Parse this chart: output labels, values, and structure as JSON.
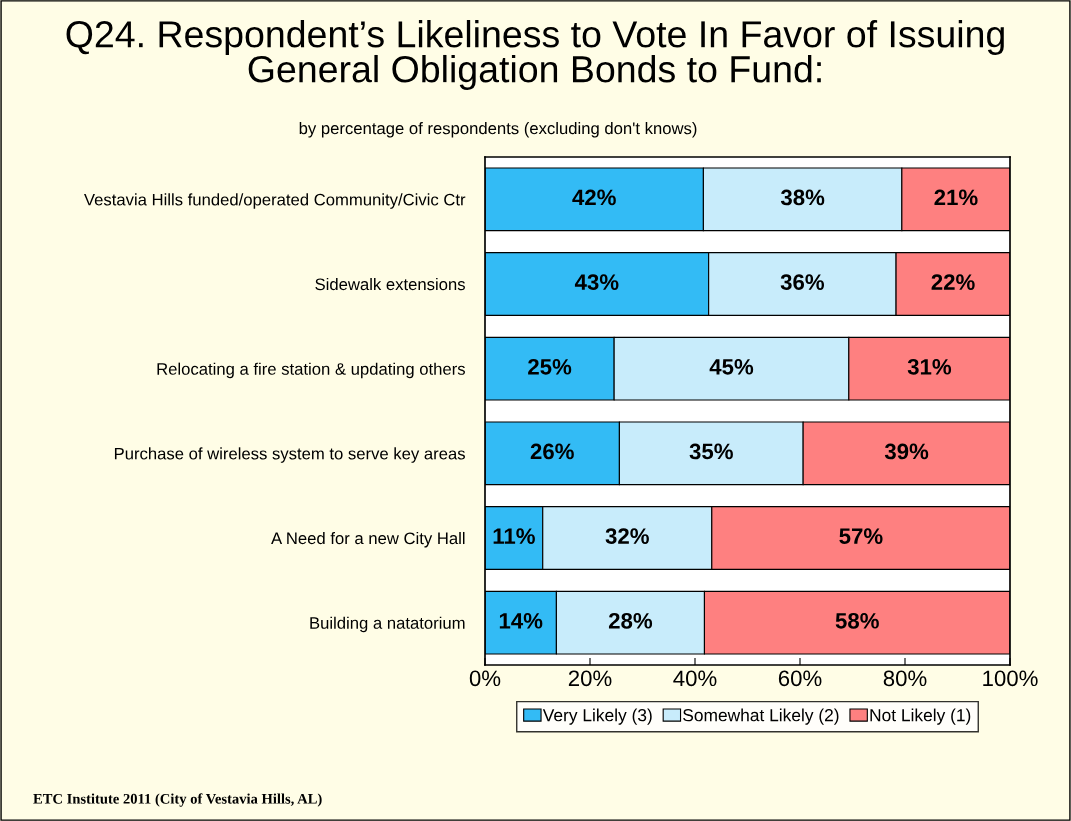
{
  "chart_data": {
    "type": "bar",
    "orientation": "horizontal",
    "stacked": true,
    "title": "Q24. Respondent’s Likeliness to Vote In Favor of Issuing\nGeneral Obligation Bonds to Fund:",
    "subtitle": "by percentage of respondents (excluding don't knows)",
    "categories": [
      "Vestavia Hills funded/operated Community/Civic Ctr",
      "Sidewalk extensions",
      "Relocating a fire station & updating others",
      "Purchase of wireless system to serve key areas",
      "A Need for a new City Hall",
      "Building a natatorium"
    ],
    "series": [
      {
        "name": "Very Likely (3)",
        "color": "#33bbf5",
        "values": [
          41.6,
          42.6,
          24.6,
          25.6,
          11.0,
          13.6
        ],
        "value_labels": [
          "42%",
          "43%",
          "25%",
          "26%",
          "11%",
          "14%"
        ]
      },
      {
        "name": "Somewhat Likely (2)",
        "color": "#c8ecfb",
        "values": [
          37.8,
          35.7,
          44.7,
          35.0,
          32.2,
          28.2
        ],
        "value_labels": [
          "38%",
          "36%",
          "45%",
          "35%",
          "32%",
          "28%"
        ]
      },
      {
        "name": "Not Likely (1)",
        "color": "#fe8080",
        "values": [
          20.6,
          21.7,
          30.7,
          39.4,
          56.8,
          58.2
        ],
        "value_labels": [
          "21%",
          "22%",
          "31%",
          "39%",
          "57%",
          "58%"
        ]
      }
    ],
    "xlim": [
      0,
      100
    ],
    "xticks": [
      {
        "value": 0,
        "label": "0%"
      },
      {
        "value": 20,
        "label": "20%"
      },
      {
        "value": 40,
        "label": "40%"
      },
      {
        "value": 60,
        "label": "60%"
      },
      {
        "value": 80,
        "label": "80%"
      },
      {
        "value": 100,
        "label": "100%"
      }
    ],
    "legend": "bottom",
    "grid": false,
    "annotations": [
      "ETC Institute 2011 (City of Vestavia Hills, AL)"
    ]
  }
}
